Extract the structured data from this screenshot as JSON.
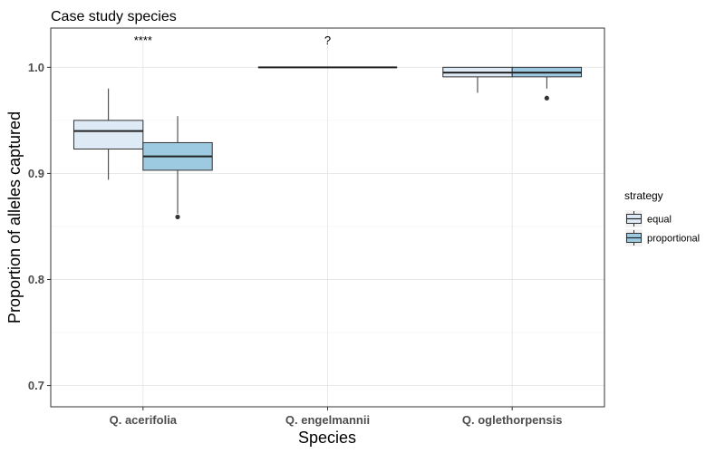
{
  "chart_data": {
    "type": "boxplot",
    "title": "Case study species",
    "xlabel": "Species",
    "ylabel": "Proportion of alleles captured",
    "ylim": [
      0.68,
      1.037
    ],
    "yticks": [
      "0.7",
      "0.8",
      "0.9",
      "1.0"
    ],
    "ytick_values": [
      0.7,
      0.8,
      0.9,
      1.0
    ],
    "grid": true,
    "legend_placement": "right",
    "legend_title": "strategy",
    "categories": [
      "Q. acerifolia",
      "Q. engelmannii",
      "Q. oglethorpensis"
    ],
    "annotations": [
      "****",
      "?",
      ""
    ],
    "series": [
      {
        "name": "equal",
        "color": "#deebf7",
        "boxes": [
          {
            "whisker_low": 0.894,
            "q1": 0.923,
            "median": 0.94,
            "q3": 0.95,
            "whisker_high": 0.98,
            "outliers": []
          },
          {
            "whisker_low": 1.0,
            "q1": 1.0,
            "median": 1.0,
            "q3": 1.0,
            "whisker_high": 1.0,
            "outliers": []
          },
          {
            "whisker_low": 0.976,
            "q1": 0.991,
            "median": 0.995,
            "q3": 1.0,
            "whisker_high": 1.0,
            "outliers": []
          }
        ]
      },
      {
        "name": "proportional",
        "color": "#9ecae1",
        "boxes": [
          {
            "whisker_low": 0.862,
            "q1": 0.903,
            "median": 0.916,
            "q3": 0.929,
            "whisker_high": 0.954,
            "outliers": [
              0.859
            ]
          },
          {
            "whisker_low": 1.0,
            "q1": 1.0,
            "median": 1.0,
            "q3": 1.0,
            "whisker_high": 1.0,
            "outliers": []
          },
          {
            "whisker_low": 0.98,
            "q1": 0.991,
            "median": 0.995,
            "q3": 1.0,
            "whisker_high": 1.0,
            "outliers": [
              0.971
            ]
          }
        ]
      }
    ]
  }
}
